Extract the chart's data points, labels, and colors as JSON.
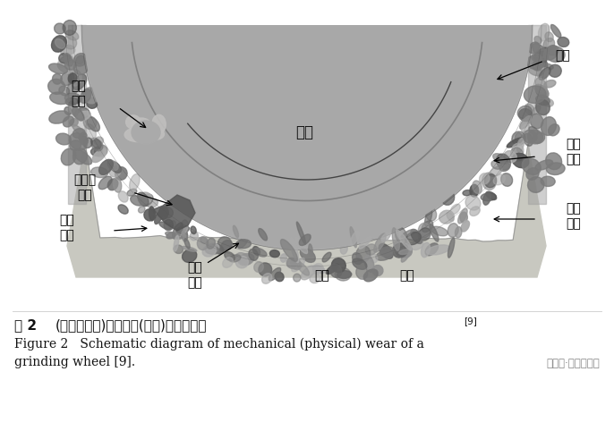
{
  "bg_color": "#ffffff",
  "wheel_body_color": "#a8a8a8",
  "wheel_outer_color": "#888888",
  "workpiece_color": "#c5c5be",
  "debris_color": "#909090",
  "title_zh_1": "图 2",
  "title_zh_2": "(网络版彩图)砂轮机械(物理)磨损示意图",
  "title_zh_sup": "[9]",
  "title_en_line1": "Figure 2   Schematic diagram of mechanical (physical) wear of a",
  "title_en_line2": "grinding wheel [9].",
  "watermark": "公众号·磨床与磨削",
  "label_shache": "砂轮",
  "label_moli": "磨粒",
  "label_qikong": "气孔\n堵塞",
  "label_zhangjie": "黏结剂\n断裂",
  "label_moxiao": "磨耗\n磨损",
  "label_posui_right": "破碎\n磨损",
  "label_moxie_left": "磨屑\n粘附",
  "label_posui_bottom": "破碎\n磨损",
  "label_moxie_bottom": "磨屑",
  "label_gongjiann": "工件",
  "font_size_label": 10,
  "font_size_caption_zh": 11,
  "font_size_caption_en": 10
}
